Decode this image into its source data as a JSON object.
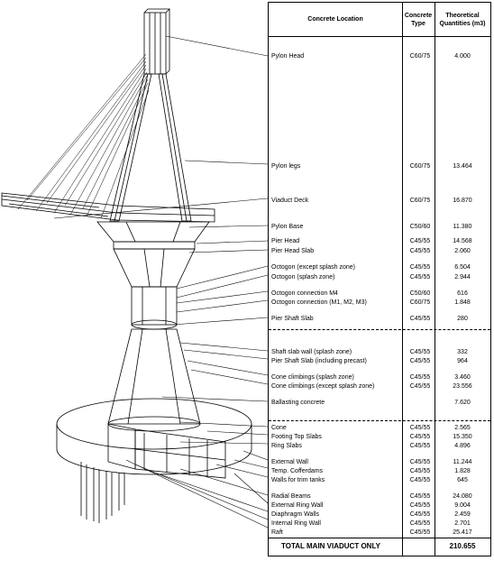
{
  "headers": {
    "location": "Concrete Location",
    "type_line1": "Concrete",
    "type_line2": "Type",
    "qty_line1": "Theoretical",
    "qty_line2": "Quantities (m3)"
  },
  "rows": [
    {
      "location": "Pylon Head",
      "type": "C60/75",
      "qty": "4.000"
    },
    {
      "location": "Pylon legs",
      "type": "C60/75",
      "qty": "13.464"
    },
    {
      "location": "Viaduct Deck",
      "type": "C60/75",
      "qty": "16.870"
    },
    {
      "location": "Pylon Base",
      "type": "C50/60",
      "qty": "11.380"
    },
    {
      "location": "Pier Head",
      "type": "C45/55",
      "qty": "14.568"
    },
    {
      "location": "Pier Head Slab",
      "type": "C45/55",
      "qty": "2.060"
    },
    {
      "location": "Octogon (except splash zone)",
      "type": "C45/55",
      "qty": "6.504"
    },
    {
      "location": "Octogon (splash zone)",
      "type": "C45/55",
      "qty": "2.944"
    },
    {
      "location": "Octogon connection M4",
      "type": "C50/60",
      "qty": "616"
    },
    {
      "location": "Octogon connection (M1, M2, M3)",
      "type": "C60/75",
      "qty": "1.848"
    },
    {
      "location": "Pier Shaft Slab",
      "type": "C45/55",
      "qty": "280"
    },
    {
      "location": "Shaft slab wall (splash zone)",
      "type": "C45/55",
      "qty": "332"
    },
    {
      "location": "Pier Shaft Slab (including precast)",
      "type": "C45/55",
      "qty": "964"
    },
    {
      "location": "Cone climbings  (splash zone)",
      "type": "C45/55",
      "qty": "3.460"
    },
    {
      "location": "Cone climbings  (except splash zone)",
      "type": "C45/55",
      "qty": "23.556"
    },
    {
      "location": "Ballasting concrete",
      "type": "",
      "qty": "7.620"
    },
    {
      "location": "Cone",
      "type": "C45/55",
      "qty": "2.565"
    },
    {
      "location": "Footing Top Slabs",
      "type": "C45/55",
      "qty": "15.350"
    },
    {
      "location": "Ring Slabs",
      "type": "C45/55",
      "qty": "4.896"
    },
    {
      "location": "External Wall",
      "type": "C45/55",
      "qty": "11.244"
    },
    {
      "location": "Temp. Cofferdams",
      "type": "C45/55",
      "qty": "1.828"
    },
    {
      "location": "Walls for trim tanks",
      "type": "C45/55",
      "qty": "645"
    },
    {
      "location": "Radial Beams",
      "type": "C45/55",
      "qty": "24.080"
    },
    {
      "location": "External Ring Wall",
      "type": "C45/55",
      "qty": "9.004"
    },
    {
      "location": "Diaphragm Walls",
      "type": "C45/55",
      "qty": "2.459"
    },
    {
      "location": "Internal Ring Wall",
      "type": "C45/55",
      "qty": "2.701"
    },
    {
      "location": "Raft",
      "type": "C45/55",
      "qty": "25.417"
    }
  ],
  "total": {
    "label": "TOTAL MAIN VIADUCT ONLY",
    "value": "210.655"
  }
}
